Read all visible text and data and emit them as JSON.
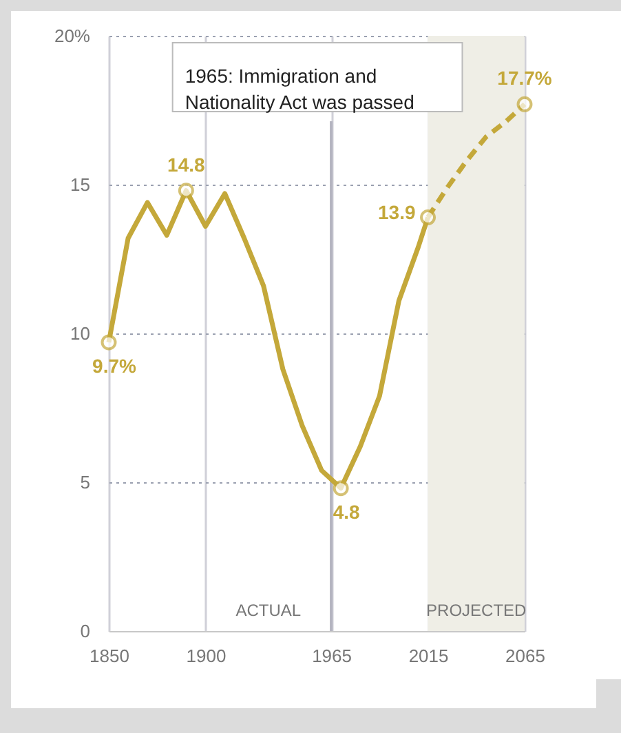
{
  "chart_data": {
    "type": "line",
    "xlim": [
      1850,
      2065
    ],
    "xticks": [
      1850,
      1900,
      1965,
      2015,
      2065
    ],
    "ylim": [
      0,
      20
    ],
    "yticks": [
      0,
      5,
      10,
      15,
      {
        "value": 20,
        "label": "20%"
      }
    ],
    "grid": true,
    "series": [
      {
        "color": "#c4a83a",
        "line_style": "solid",
        "x": [
          1850,
          1860,
          1870,
          1880,
          1890,
          1900,
          1910,
          1920,
          1930,
          1940,
          1950,
          1960,
          1970,
          1980,
          1990,
          2000,
          2010,
          2015
        ],
        "values": [
          9.7,
          13.2,
          14.4,
          13.3,
          14.8,
          13.6,
          14.7,
          13.2,
          11.6,
          8.8,
          6.9,
          5.4,
          4.8,
          6.2,
          7.9,
          11.1,
          12.9,
          13.9
        ],
        "value_labels": [
          "9.7%",
          null,
          null,
          null,
          "14.8",
          null,
          null,
          null,
          null,
          null,
          null,
          null,
          "4.8",
          null,
          null,
          null,
          null,
          "13.9"
        ]
      },
      {
        "color": "#c4a83a",
        "line_style": "dashed",
        "x": [
          2015,
          2025,
          2035,
          2045,
          2055,
          2065
        ],
        "values": [
          13.9,
          14.9,
          15.8,
          16.6,
          17.1,
          17.7
        ],
        "value_labels": [
          null,
          null,
          null,
          null,
          null,
          "17.7%"
        ]
      }
    ],
    "bands": [
      {
        "axis": "x",
        "from": 2015,
        "to": 2065,
        "label": "PROJECTED",
        "color": "#efeee6"
      }
    ],
    "ref_lines": [
      {
        "axis": "x",
        "value": 1965,
        "label": "1965: Immigration and Nationality Act was passed",
        "color": "#b4b4c0"
      }
    ],
    "annotations": [
      "ACTUAL"
    ]
  }
}
